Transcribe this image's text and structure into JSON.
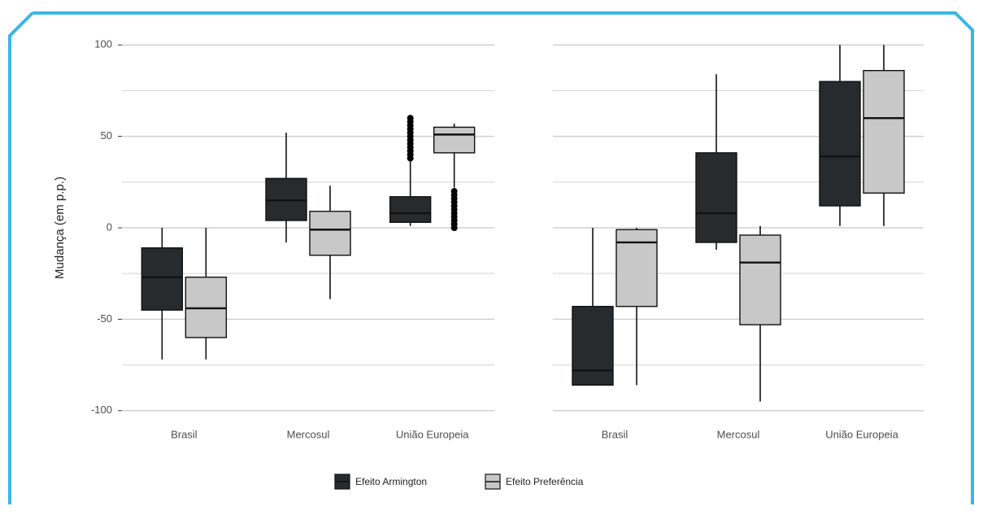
{
  "chart_data": [
    {
      "type": "box",
      "ylabel": "Mudança (em p.p.)",
      "categories": [
        "Brasil",
        "Mercosul",
        "União Europeia"
      ],
      "ylim": [
        -105,
        105
      ],
      "yticks": [
        -100,
        -50,
        0,
        50,
        100
      ],
      "minor_yticks": [
        -75,
        -25,
        25,
        75
      ],
      "grid": true,
      "series": [
        {
          "name": "Efeito Armington",
          "color": "#272b2e",
          "values": [
            {
              "min": -72,
              "q1": -45,
              "median": -27,
              "q3": -11,
              "max": 0,
              "outliers": []
            },
            {
              "min": -8,
              "q1": 4,
              "median": 15,
              "q3": 27,
              "max": 52,
              "outliers": []
            },
            {
              "min": 1,
              "q1": 3,
              "median": 8,
              "q3": 17,
              "max": 37,
              "outliers": [
                38,
                40,
                42,
                44,
                46,
                48,
                50,
                52,
                54,
                56,
                58,
                60
              ]
            }
          ]
        },
        {
          "name": "Efeito Preferência",
          "color": "#c8c8c8",
          "values": [
            {
              "min": -72,
              "q1": -60,
              "median": -44,
              "q3": -27,
              "max": 0,
              "outliers": []
            },
            {
              "min": -39,
              "q1": -15,
              "median": -1,
              "q3": 9,
              "max": 23,
              "outliers": []
            },
            {
              "min": 22,
              "q1": 41,
              "median": 51,
              "q3": 55,
              "max": 57,
              "outliers": [
                0,
                2,
                4,
                6,
                8,
                10,
                12,
                14,
                16,
                18,
                20
              ]
            }
          ]
        }
      ]
    },
    {
      "type": "box",
      "categories": [
        "Brasil",
        "Mercosul",
        "União Europeia"
      ],
      "ylim": [
        -105,
        105
      ],
      "yticks": [
        -100,
        -50,
        0,
        50,
        100
      ],
      "minor_yticks": [
        -75,
        -25,
        25,
        75
      ],
      "grid": true,
      "series": [
        {
          "color": "#272b2e",
          "values": [
            {
              "min": -86,
              "q1": -86,
              "median": -78,
              "q3": -43,
              "max": 0,
              "outliers": []
            },
            {
              "min": -12,
              "q1": -8,
              "median": 8,
              "q3": 41,
              "max": 84,
              "outliers": []
            },
            {
              "min": 1,
              "q1": 12,
              "median": 39,
              "q3": 80,
              "max": 100,
              "outliers": []
            }
          ]
        },
        {
          "color": "#c8c8c8",
          "values": [
            {
              "min": -86,
              "q1": -43,
              "median": -8,
              "q3": -1,
              "max": 0,
              "outliers": []
            },
            {
              "min": -95,
              "q1": -53,
              "median": -19,
              "q3": -4,
              "max": 1,
              "outliers": []
            },
            {
              "min": 1,
              "q1": 19,
              "median": 60,
              "q3": 86,
              "max": 100,
              "outliers": []
            }
          ]
        }
      ]
    }
  ]
}
